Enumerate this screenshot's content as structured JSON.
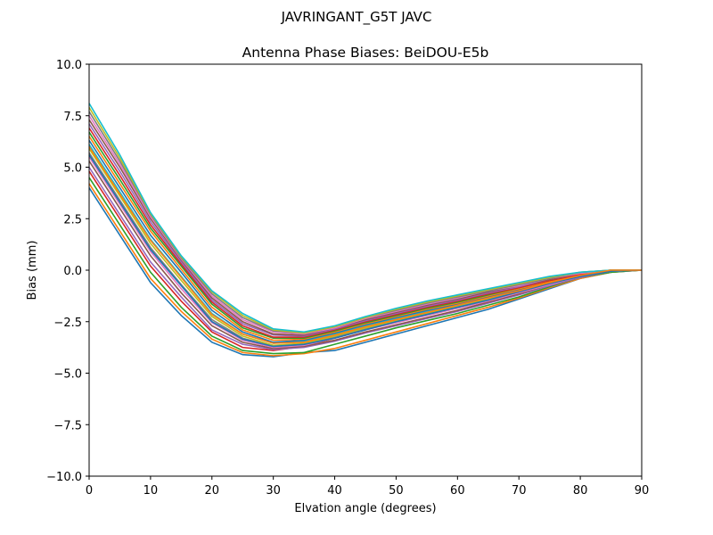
{
  "figure": {
    "suptitle": "JAVRINGANT_G5T  JAVC"
  },
  "chart_data": {
    "type": "line",
    "title": "Antenna Phase Biases: BeiDOU-E5b",
    "xlabel": "Elvation angle (degrees)",
    "ylabel": "Bias (mm)",
    "xlim": [
      0,
      90
    ],
    "ylim": [
      -10,
      10
    ],
    "xticks": [
      0,
      10,
      20,
      30,
      40,
      50,
      60,
      70,
      80,
      90
    ],
    "yticks": [
      -10.0,
      -7.5,
      -5.0,
      -2.5,
      0.0,
      2.5,
      5.0,
      7.5,
      10.0
    ],
    "ytick_labels": [
      "−10.0",
      "−7.5",
      "−5.0",
      "−2.5",
      "0.0",
      "2.5",
      "5.0",
      "7.5",
      "10.0"
    ],
    "grid": false,
    "legend": "none",
    "colors": [
      "#1f77b4",
      "#ff7f0e",
      "#2ca02c",
      "#d62728",
      "#9467bd",
      "#8c564b",
      "#e377c2",
      "#7f7f7f",
      "#bcbd22",
      "#17becf"
    ],
    "x": [
      0,
      5,
      10,
      15,
      20,
      25,
      30,
      35,
      40,
      45,
      50,
      55,
      60,
      65,
      70,
      75,
      80,
      85,
      90
    ],
    "series": [
      {
        "values": [
          4.0,
          1.7,
          -0.6,
          -2.2,
          -3.5,
          -4.1,
          -4.2,
          -4.0,
          -3.9,
          -3.5,
          -3.1,
          -2.7,
          -2.3,
          -1.9,
          -1.4,
          -0.9,
          -0.4,
          -0.1,
          0.0
        ]
      },
      {
        "values": [
          4.2,
          1.9,
          -0.4,
          -2.0,
          -3.35,
          -4.0,
          -4.15,
          -4.05,
          -3.8,
          -3.4,
          -3.0,
          -2.6,
          -2.2,
          -1.8,
          -1.35,
          -0.85,
          -0.4,
          -0.1,
          0.0
        ]
      },
      {
        "values": [
          4.5,
          2.2,
          -0.1,
          -1.8,
          -3.2,
          -3.9,
          -4.05,
          -4.0,
          -3.6,
          -3.2,
          -2.8,
          -2.45,
          -2.1,
          -1.7,
          -1.3,
          -0.8,
          -0.35,
          -0.1,
          0.0
        ]
      },
      {
        "values": [
          4.8,
          2.5,
          0.2,
          -1.5,
          -3.0,
          -3.75,
          -3.9,
          -3.7,
          -3.3,
          -2.8,
          -2.3,
          -1.9,
          -1.6,
          -1.25,
          -0.9,
          -0.55,
          -0.2,
          0.0,
          0.0
        ]
      },
      {
        "values": [
          5.0,
          2.7,
          0.4,
          -1.3,
          -2.9,
          -3.6,
          -3.85,
          -3.75,
          -3.45,
          -3.05,
          -2.7,
          -2.35,
          -2.0,
          -1.6,
          -1.2,
          -0.75,
          -0.35,
          -0.05,
          0.0
        ]
      },
      {
        "values": [
          5.3,
          3.0,
          0.7,
          -1.1,
          -2.7,
          -3.5,
          -3.8,
          -3.7,
          -3.4,
          -3.0,
          -2.65,
          -2.3,
          -1.95,
          -1.55,
          -1.15,
          -0.7,
          -0.3,
          -0.05,
          0.0
        ]
      },
      {
        "values": [
          5.5,
          3.2,
          0.9,
          -0.9,
          -2.55,
          -3.4,
          -3.75,
          -3.65,
          -3.3,
          -2.9,
          -2.55,
          -2.2,
          -1.85,
          -1.5,
          -1.1,
          -0.7,
          -0.3,
          -0.05,
          0.0
        ]
      },
      {
        "values": [
          5.7,
          3.4,
          1.1,
          -0.7,
          -2.4,
          -3.3,
          -3.7,
          -3.6,
          -3.25,
          -2.85,
          -2.5,
          -2.15,
          -1.8,
          -1.45,
          -1.05,
          -0.65,
          -0.3,
          -0.05,
          0.0
        ]
      },
      {
        "values": [
          5.9,
          3.6,
          1.3,
          -0.5,
          -2.25,
          -3.2,
          -3.65,
          -3.55,
          -3.2,
          -2.8,
          -2.45,
          -2.1,
          -1.75,
          -1.4,
          -1.0,
          -0.6,
          -0.25,
          -0.05,
          0.0
        ]
      },
      {
        "values": [
          6.1,
          3.8,
          1.5,
          -0.3,
          -2.1,
          -3.1,
          -3.55,
          -3.45,
          -3.1,
          -2.7,
          -2.35,
          -2.0,
          -1.7,
          -1.35,
          -1.0,
          -0.6,
          -0.25,
          0.0,
          0.0
        ]
      },
      {
        "values": [
          6.3,
          4.0,
          1.7,
          -0.1,
          -1.95,
          -3.0,
          -3.5,
          -3.4,
          -3.05,
          -2.65,
          -2.3,
          -1.95,
          -1.65,
          -1.3,
          -0.95,
          -0.55,
          -0.25,
          0.0,
          0.0
        ]
      },
      {
        "values": [
          6.5,
          4.2,
          1.9,
          0.05,
          -1.8,
          -2.9,
          -3.4,
          -3.35,
          -3.0,
          -2.6,
          -2.25,
          -1.9,
          -1.6,
          -1.25,
          -0.9,
          -0.55,
          -0.2,
          0.0,
          0.0
        ]
      },
      {
        "values": [
          6.7,
          4.4,
          2.05,
          0.2,
          -1.65,
          -2.8,
          -3.3,
          -3.3,
          -2.95,
          -2.55,
          -2.2,
          -1.85,
          -1.55,
          -1.2,
          -0.85,
          -0.5,
          -0.2,
          0.0,
          0.0
        ]
      },
      {
        "values": [
          6.9,
          4.6,
          2.2,
          0.3,
          -1.55,
          -2.7,
          -3.25,
          -3.25,
          -2.9,
          -2.5,
          -2.15,
          -1.8,
          -1.5,
          -1.15,
          -0.85,
          -0.5,
          -0.2,
          0.0,
          0.0
        ]
      },
      {
        "values": [
          7.1,
          4.8,
          2.35,
          0.4,
          -1.45,
          -2.6,
          -3.15,
          -3.2,
          -2.85,
          -2.45,
          -2.1,
          -1.75,
          -1.45,
          -1.1,
          -0.8,
          -0.45,
          -0.15,
          0.0,
          0.0
        ]
      },
      {
        "values": [
          7.3,
          5.0,
          2.5,
          0.5,
          -1.35,
          -2.5,
          -3.1,
          -3.15,
          -2.8,
          -2.4,
          -2.05,
          -1.7,
          -1.4,
          -1.05,
          -0.75,
          -0.45,
          -0.15,
          0.0,
          0.0
        ]
      },
      {
        "values": [
          7.5,
          5.15,
          2.6,
          0.55,
          -1.25,
          -2.4,
          -3.0,
          -3.1,
          -2.8,
          -2.35,
          -2.0,
          -1.65,
          -1.35,
          -1.0,
          -0.75,
          -0.4,
          -0.15,
          0.0,
          0.0
        ]
      },
      {
        "values": [
          7.7,
          5.3,
          2.7,
          0.6,
          -1.15,
          -2.3,
          -2.95,
          -3.05,
          -2.75,
          -2.3,
          -1.95,
          -1.6,
          -1.3,
          -1.0,
          -0.7,
          -0.4,
          -0.1,
          0.0,
          0.0
        ]
      },
      {
        "values": [
          7.9,
          5.45,
          2.75,
          0.65,
          -1.05,
          -2.2,
          -2.9,
          -3.05,
          -2.75,
          -2.3,
          -1.9,
          -1.55,
          -1.25,
          -0.95,
          -0.65,
          -0.35,
          -0.1,
          0.0,
          0.0
        ]
      },
      {
        "values": [
          8.1,
          5.6,
          2.8,
          0.7,
          -1.0,
          -2.1,
          -2.85,
          -3.0,
          -2.7,
          -2.25,
          -1.85,
          -1.5,
          -1.2,
          -0.9,
          -0.6,
          -0.3,
          -0.1,
          0.0,
          0.0
        ]
      },
      {
        "values": [
          5.6,
          3.3,
          1.0,
          -0.75,
          -2.5,
          -3.35,
          -3.7,
          -3.6,
          -3.3,
          -2.9,
          -2.5,
          -2.15,
          -1.8,
          -1.45,
          -1.05,
          -0.65,
          -0.3,
          -0.05,
          0.0
        ]
      },
      {
        "values": [
          6.0,
          3.7,
          1.45,
          -0.35,
          -2.15,
          -3.1,
          -3.55,
          -3.5,
          -3.15,
          -2.75,
          -2.4,
          -2.05,
          -1.7,
          -1.35,
          -1.0,
          -0.6,
          -0.25,
          0.0,
          0.0
        ]
      }
    ]
  }
}
